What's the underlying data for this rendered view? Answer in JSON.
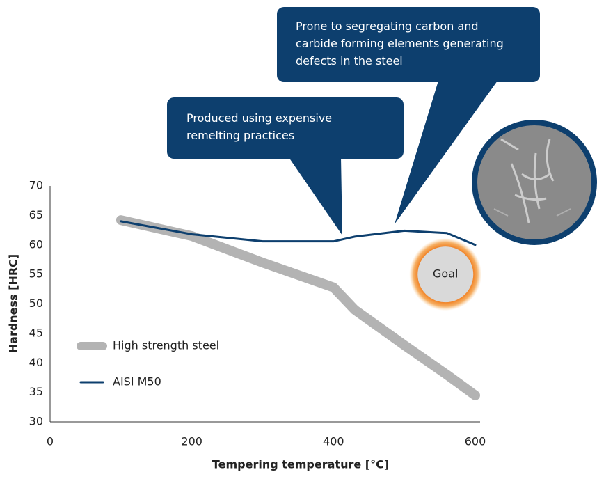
{
  "chart_data": {
    "type": "line",
    "x_label": "Tempering temperature [°C]",
    "y_label": "Hardness [HRC]",
    "x": [
      100,
      200,
      300,
      400,
      430,
      500,
      560,
      600
    ],
    "series": [
      {
        "name": "High strength steel",
        "color": "#b3b3b3",
        "values": [
          64.2,
          61.5,
          57,
          52.8,
          49,
          43,
          38,
          34.5
        ]
      },
      {
        "name": "AISI M50",
        "color": "#0d3f6e",
        "values": [
          64,
          61.8,
          60.6,
          60.6,
          61.4,
          62.4,
          62,
          60
        ]
      }
    ],
    "xlim": [
      0,
      600
    ],
    "xticks": [
      0,
      200,
      400,
      600
    ],
    "ylim": [
      30,
      70
    ],
    "yticks": [
      30,
      35,
      40,
      45,
      50,
      55,
      60,
      65,
      70
    ],
    "grid": false,
    "goal": {
      "label": "Goal",
      "x": 558,
      "y": 55
    },
    "annotations": [
      {
        "lines": [
          "Produced using expensive",
          "remelting practices"
        ]
      },
      {
        "lines": [
          "Prone to segregating carbon and",
          "carbide forming elements generating",
          "defects in the steel"
        ]
      }
    ]
  }
}
